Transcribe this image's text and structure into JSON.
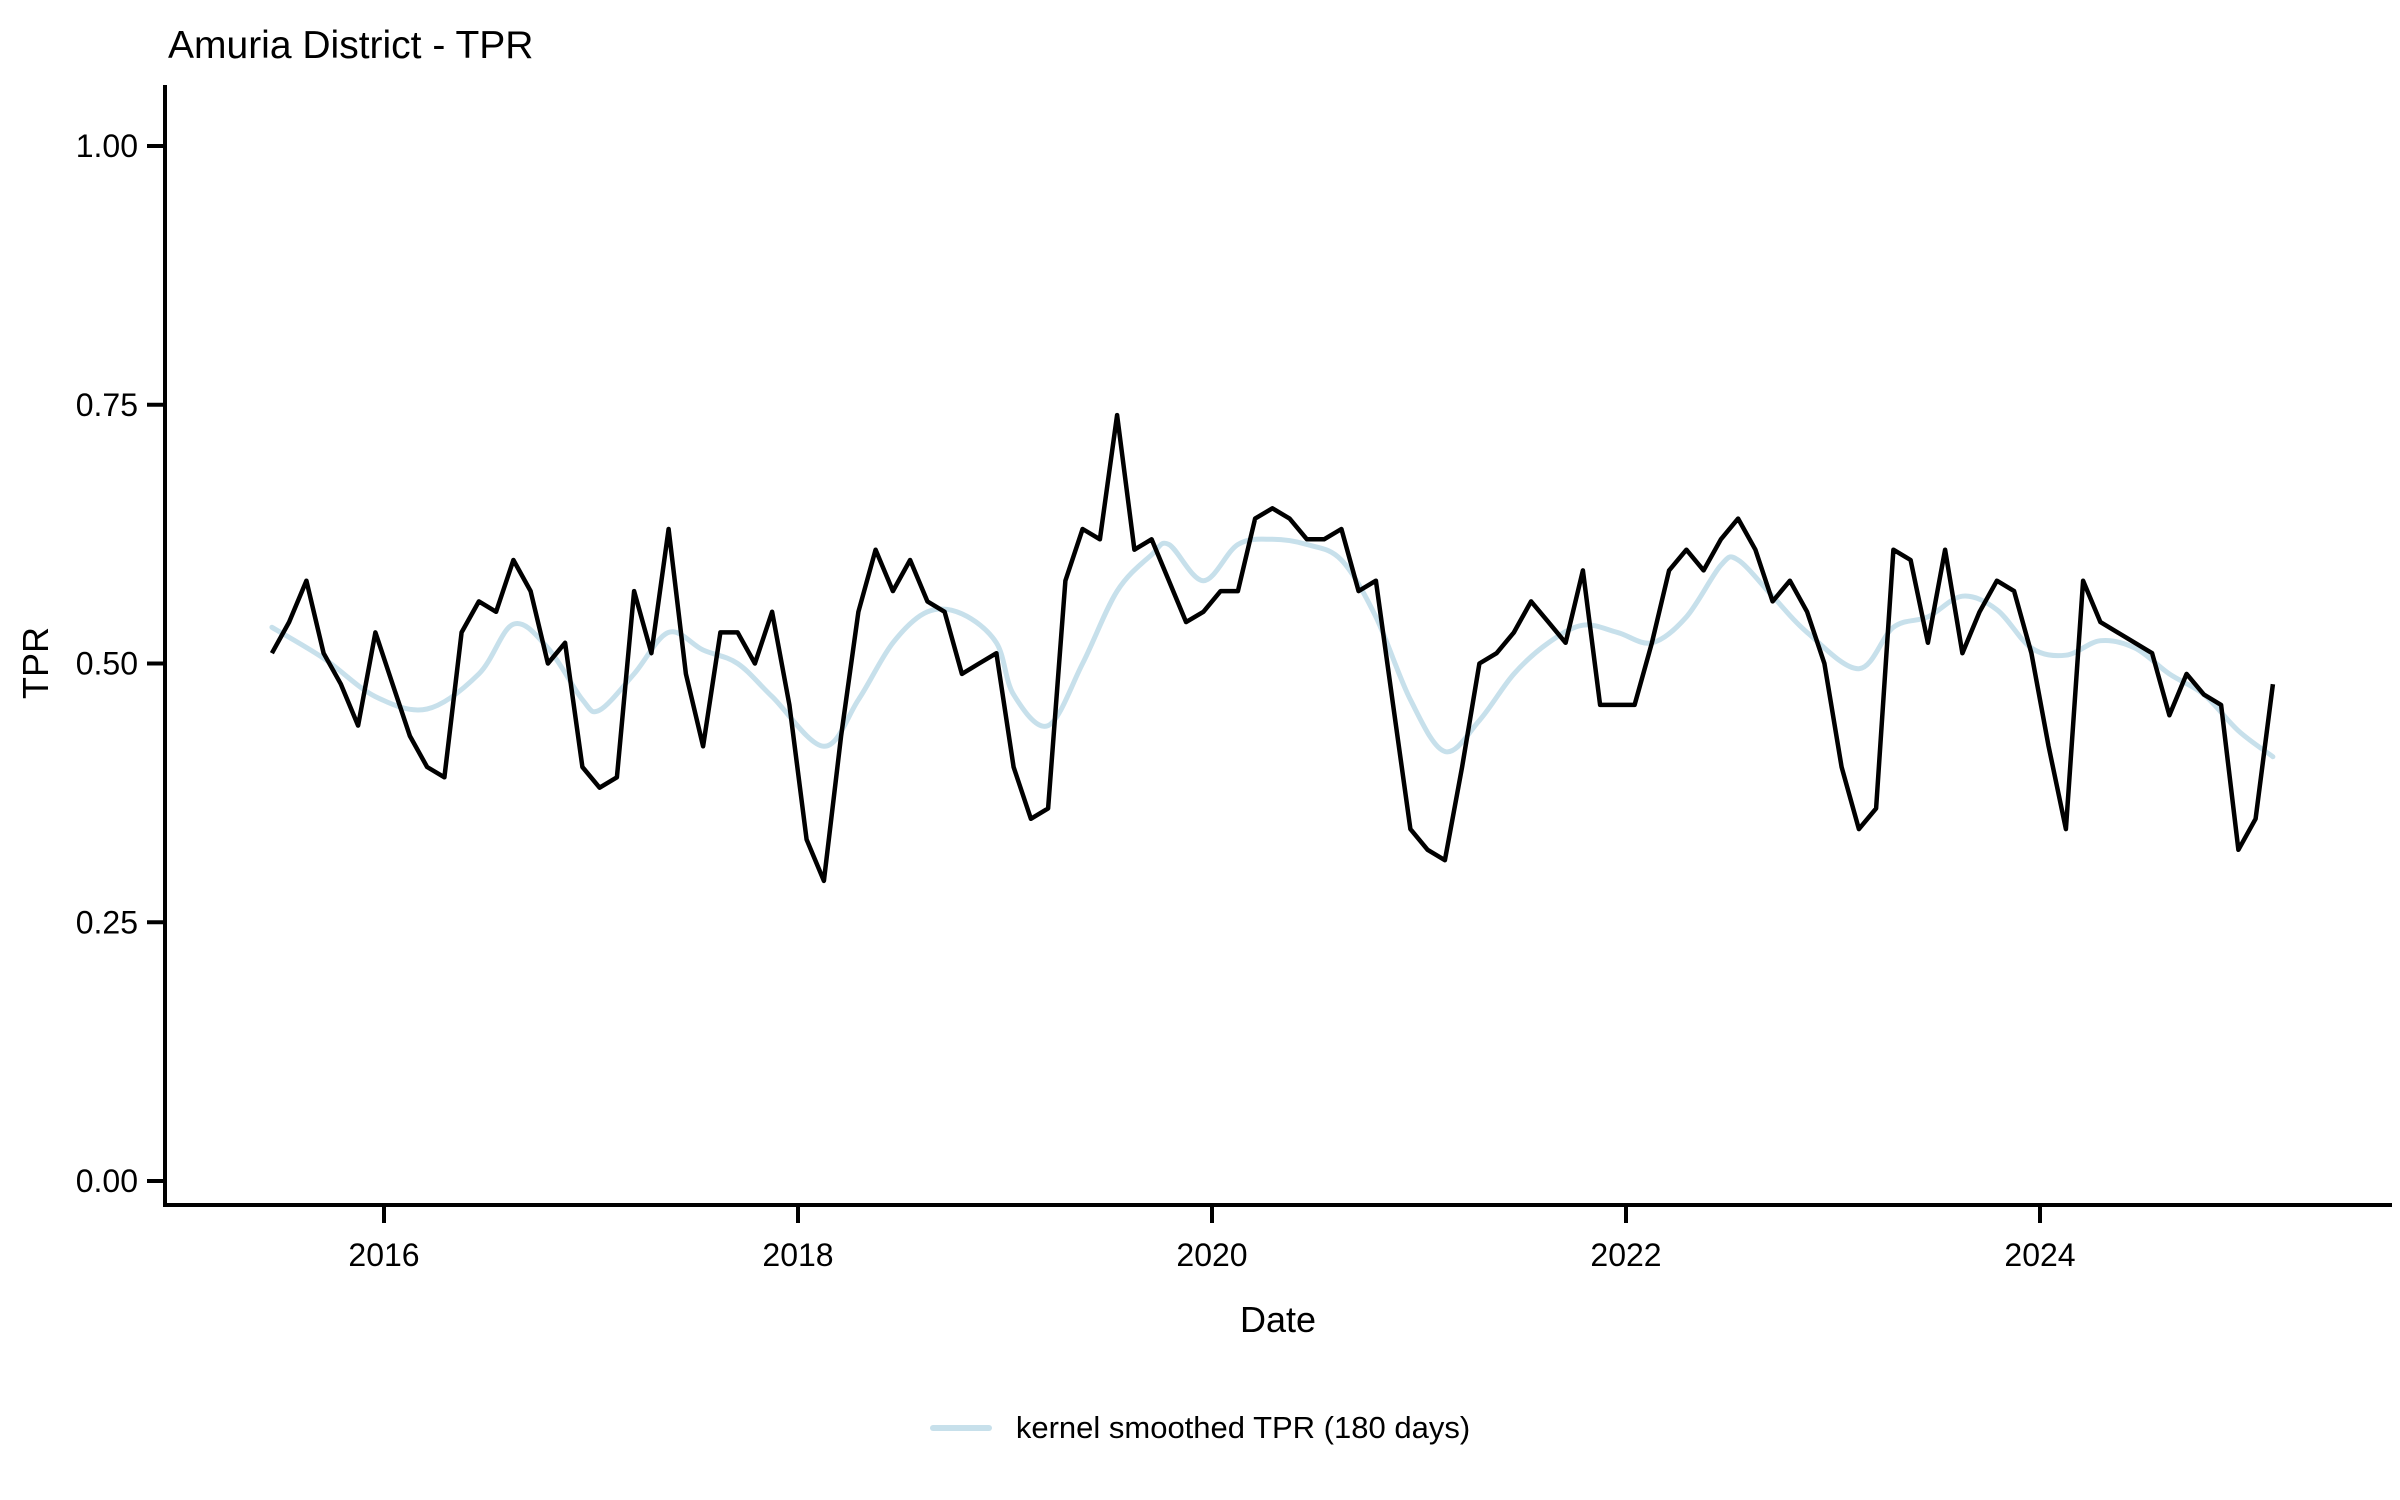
{
  "chart_data": {
    "type": "line",
    "title": "Amuria District - TPR",
    "x_axis": {
      "label": "Date",
      "tick_values": [
        2016,
        2018,
        2020,
        2022,
        2024
      ],
      "tick_labels": [
        "2016",
        "2018",
        "2020",
        "2022",
        "2024"
      ],
      "range": [
        "2015-06",
        "2025-02"
      ]
    },
    "y_axis": {
      "label": "TPR",
      "tick_values": [
        0,
        0.25,
        0.5,
        0.75,
        1.0
      ],
      "tick_labels": [
        "0.00",
        "0.25",
        "0.50",
        "0.75",
        "1.00"
      ],
      "range": [
        0,
        1
      ]
    },
    "grid": false,
    "legend": {
      "position": "bottom",
      "label": "kernel smoothed TPR (180 days)",
      "color": "#c7e0eb"
    },
    "series": [
      {
        "name": "TPR",
        "color": "#000000",
        "style": "jagged-monthly",
        "points": [
          [
            "2015-06",
            0.51
          ],
          [
            "2015-07",
            0.54
          ],
          [
            "2015-08",
            0.58
          ],
          [
            "2015-09",
            0.51
          ],
          [
            "2015-10",
            0.48
          ],
          [
            "2015-11",
            0.44
          ],
          [
            "2015-12",
            0.53
          ],
          [
            "2016-01",
            0.48
          ],
          [
            "2016-02",
            0.43
          ],
          [
            "2016-03",
            0.4
          ],
          [
            "2016-04",
            0.39
          ],
          [
            "2016-05",
            0.53
          ],
          [
            "2016-06",
            0.56
          ],
          [
            "2016-07",
            0.55
          ],
          [
            "2016-08",
            0.6
          ],
          [
            "2016-09",
            0.57
          ],
          [
            "2016-10",
            0.5
          ],
          [
            "2016-11",
            0.52
          ],
          [
            "2016-12",
            0.4
          ],
          [
            "2017-01",
            0.38
          ],
          [
            "2017-02",
            0.39
          ],
          [
            "2017-03",
            0.57
          ],
          [
            "2017-04",
            0.51
          ],
          [
            "2017-05",
            0.63
          ],
          [
            "2017-06",
            0.49
          ],
          [
            "2017-07",
            0.42
          ],
          [
            "2017-08",
            0.53
          ],
          [
            "2017-09",
            0.53
          ],
          [
            "2017-10",
            0.5
          ],
          [
            "2017-11",
            0.55
          ],
          [
            "2017-12",
            0.46
          ],
          [
            "2018-01",
            0.33
          ],
          [
            "2018-02",
            0.29
          ],
          [
            "2018-03",
            0.43
          ],
          [
            "2018-04",
            0.55
          ],
          [
            "2018-05",
            0.61
          ],
          [
            "2018-06",
            0.57
          ],
          [
            "2018-07",
            0.6
          ],
          [
            "2018-08",
            0.56
          ],
          [
            "2018-09",
            0.55
          ],
          [
            "2018-10",
            0.49
          ],
          [
            "2018-11",
            0.5
          ],
          [
            "2018-12",
            0.51
          ],
          [
            "2019-01",
            0.4
          ],
          [
            "2019-02",
            0.35
          ],
          [
            "2019-03",
            0.36
          ],
          [
            "2019-04",
            0.58
          ],
          [
            "2019-05",
            0.63
          ],
          [
            "2019-06",
            0.62
          ],
          [
            "2019-07",
            0.74
          ],
          [
            "2019-08",
            0.61
          ],
          [
            "2019-09",
            0.62
          ],
          [
            "2019-10",
            0.58
          ],
          [
            "2019-11",
            0.54
          ],
          [
            "2019-12",
            0.55
          ],
          [
            "2020-01",
            0.57
          ],
          [
            "2020-02",
            0.57
          ],
          [
            "2020-03",
            0.64
          ],
          [
            "2020-04",
            0.65
          ],
          [
            "2020-05",
            0.64
          ],
          [
            "2020-06",
            0.62
          ],
          [
            "2020-07",
            0.62
          ],
          [
            "2020-08",
            0.63
          ],
          [
            "2020-09",
            0.57
          ],
          [
            "2020-10",
            0.58
          ],
          [
            "2020-11",
            0.46
          ],
          [
            "2020-12",
            0.34
          ],
          [
            "2021-01",
            0.32
          ],
          [
            "2021-02",
            0.31
          ],
          [
            "2021-03",
            0.4
          ],
          [
            "2021-04",
            0.5
          ],
          [
            "2021-05",
            0.51
          ],
          [
            "2021-06",
            0.53
          ],
          [
            "2021-07",
            0.56
          ],
          [
            "2021-08",
            0.54
          ],
          [
            "2021-09",
            0.52
          ],
          [
            "2021-10",
            0.59
          ],
          [
            "2021-11",
            0.46
          ],
          [
            "2021-12",
            0.46
          ],
          [
            "2022-01",
            0.46
          ],
          [
            "2022-02",
            0.52
          ],
          [
            "2022-03",
            0.59
          ],
          [
            "2022-04",
            0.61
          ],
          [
            "2022-05",
            0.59
          ],
          [
            "2022-06",
            0.62
          ],
          [
            "2022-07",
            0.64
          ],
          [
            "2022-08",
            0.61
          ],
          [
            "2022-09",
            0.56
          ],
          [
            "2022-10",
            0.58
          ],
          [
            "2022-11",
            0.55
          ],
          [
            "2022-12",
            0.5
          ],
          [
            "2023-01",
            0.4
          ],
          [
            "2023-02",
            0.34
          ],
          [
            "2023-03",
            0.36
          ],
          [
            "2023-04",
            0.61
          ],
          [
            "2023-05",
            0.6
          ],
          [
            "2023-06",
            0.52
          ],
          [
            "2023-07",
            0.61
          ],
          [
            "2023-08",
            0.51
          ],
          [
            "2023-09",
            0.55
          ],
          [
            "2023-10",
            0.58
          ],
          [
            "2023-11",
            0.57
          ],
          [
            "2023-12",
            0.51
          ],
          [
            "2024-01",
            0.42
          ],
          [
            "2024-02",
            0.34
          ],
          [
            "2024-03",
            0.58
          ],
          [
            "2024-04",
            0.54
          ],
          [
            "2024-05",
            0.53
          ],
          [
            "2024-06",
            0.52
          ],
          [
            "2024-07",
            0.51
          ],
          [
            "2024-08",
            0.45
          ],
          [
            "2024-09",
            0.49
          ],
          [
            "2024-10",
            0.47
          ],
          [
            "2024-11",
            0.46
          ],
          [
            "2024-12",
            0.32
          ],
          [
            "2025-01",
            0.35
          ],
          [
            "2025-02",
            0.48
          ]
        ]
      },
      {
        "name": "kernel smoothed TPR (180 days)",
        "color": "#c7e0eb",
        "style": "smooth",
        "points": [
          [
            "2015-06",
            0.535
          ],
          [
            "2015-09",
            0.505
          ],
          [
            "2015-12",
            0.468
          ],
          [
            "2016-03",
            0.456
          ],
          [
            "2016-06",
            0.49
          ],
          [
            "2016-08",
            0.538
          ],
          [
            "2016-10",
            0.515
          ],
          [
            "2016-12",
            0.465
          ],
          [
            "2017-01",
            0.455
          ],
          [
            "2017-03",
            0.49
          ],
          [
            "2017-05",
            0.53
          ],
          [
            "2017-07",
            0.513
          ],
          [
            "2017-09",
            0.5
          ],
          [
            "2017-11",
            0.468
          ],
          [
            "2018-02",
            0.42
          ],
          [
            "2018-04",
            0.465
          ],
          [
            "2018-06",
            0.52
          ],
          [
            "2018-08",
            0.55
          ],
          [
            "2018-10",
            0.548
          ],
          [
            "2018-12",
            0.52
          ],
          [
            "2019-01",
            0.47
          ],
          [
            "2019-03",
            0.44
          ],
          [
            "2019-05",
            0.5
          ],
          [
            "2019-07",
            0.57
          ],
          [
            "2019-09",
            0.605
          ],
          [
            "2019-10",
            0.615
          ],
          [
            "2019-12",
            0.58
          ],
          [
            "2020-02",
            0.615
          ],
          [
            "2020-04",
            0.62
          ],
          [
            "2020-06",
            0.615
          ],
          [
            "2020-08",
            0.6
          ],
          [
            "2020-10",
            0.545
          ],
          [
            "2020-12",
            0.465
          ],
          [
            "2021-02",
            0.415
          ],
          [
            "2021-04",
            0.445
          ],
          [
            "2021-06",
            0.49
          ],
          [
            "2021-08",
            0.52
          ],
          [
            "2021-10",
            0.537
          ],
          [
            "2021-12",
            0.53
          ],
          [
            "2022-02",
            0.52
          ],
          [
            "2022-04",
            0.545
          ],
          [
            "2022-06",
            0.595
          ],
          [
            "2022-07",
            0.6
          ],
          [
            "2022-09",
            0.565
          ],
          [
            "2022-11",
            0.53
          ],
          [
            "2023-02",
            0.495
          ],
          [
            "2023-04",
            0.535
          ],
          [
            "2023-06",
            0.545
          ],
          [
            "2023-08",
            0.565
          ],
          [
            "2023-10",
            0.552
          ],
          [
            "2023-12",
            0.515
          ],
          [
            "2024-02",
            0.508
          ],
          [
            "2024-04",
            0.522
          ],
          [
            "2024-06",
            0.515
          ],
          [
            "2024-08",
            0.49
          ],
          [
            "2024-10",
            0.47
          ],
          [
            "2024-12",
            0.435
          ],
          [
            "2025-02",
            0.41
          ]
        ]
      }
    ]
  }
}
